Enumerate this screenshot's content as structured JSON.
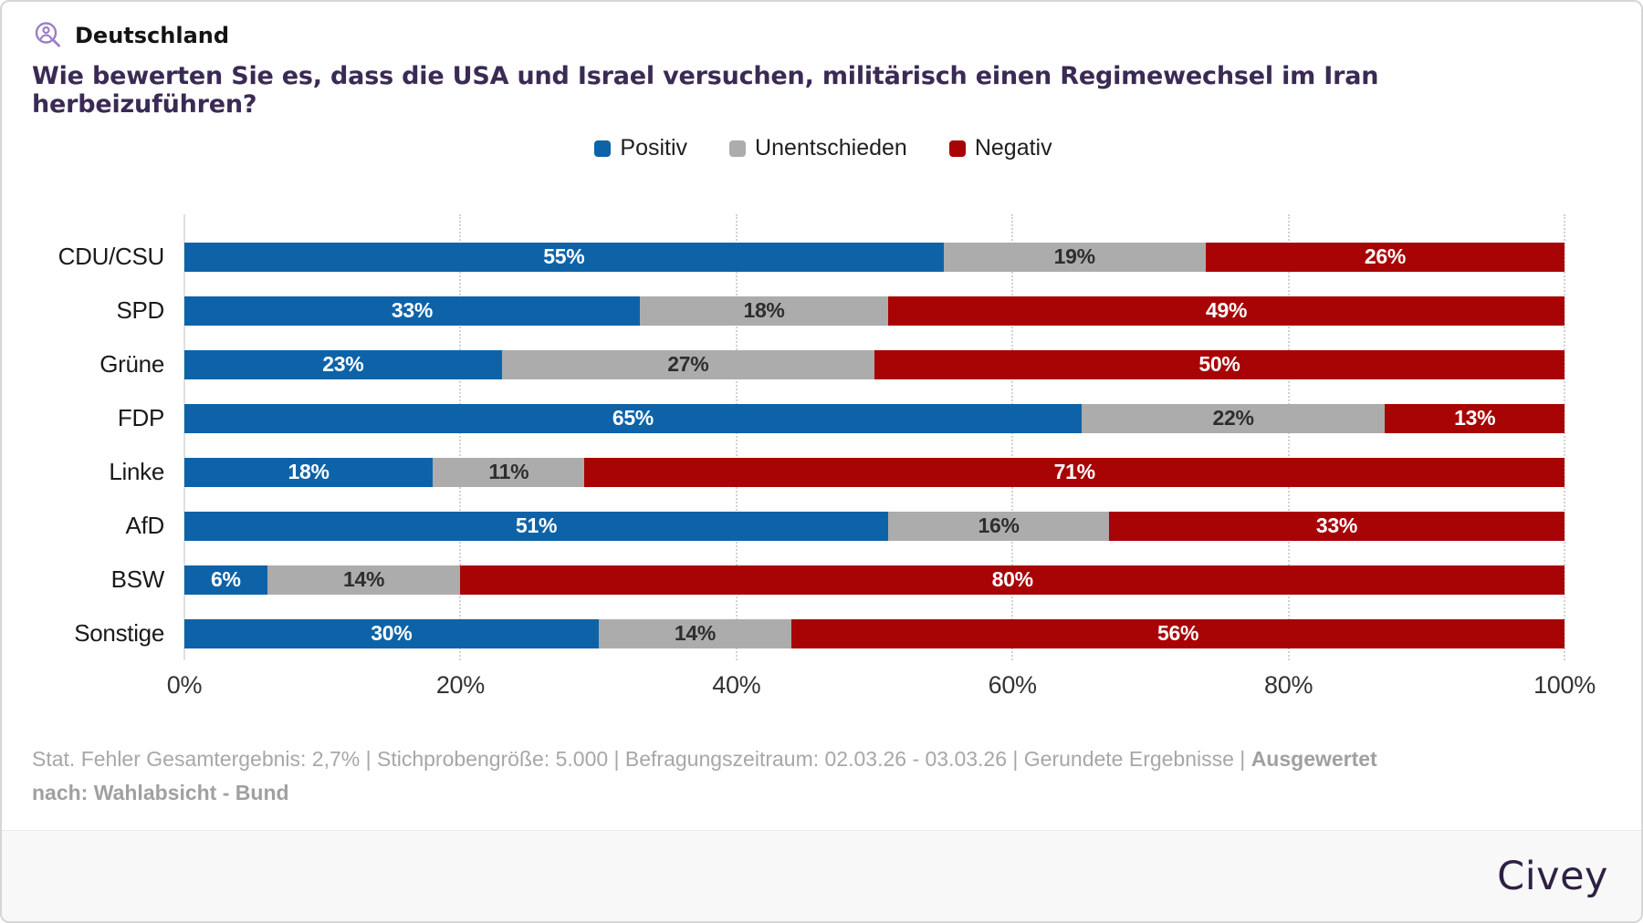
{
  "header": {
    "region": "Deutschland",
    "icon": "person-search-icon"
  },
  "question": "Wie bewerten Sie es, dass die USA und Israel versuchen, militärisch einen Regimewechsel im Iran herbeizuführen?",
  "chart_data": {
    "type": "bar",
    "orientation": "horizontal",
    "stacked": true,
    "unit": "%",
    "categories": [
      "CDU/CSU",
      "SPD",
      "Grüne",
      "FDP",
      "Linke",
      "AfD",
      "BSW",
      "Sonstige"
    ],
    "series": [
      {
        "name": "Positiv",
        "color": "#0e63a8",
        "label_color": "#ffffff",
        "values": [
          55,
          33,
          23,
          65,
          18,
          51,
          6,
          30
        ]
      },
      {
        "name": "Unentschieden",
        "color": "#acacac",
        "label_color": "#2e2e2e",
        "values": [
          19,
          18,
          27,
          22,
          11,
          16,
          14,
          14
        ]
      },
      {
        "name": "Negativ",
        "color": "#a80305",
        "label_color": "#ffffff",
        "values": [
          26,
          49,
          50,
          13,
          71,
          33,
          80,
          56
        ]
      }
    ],
    "x_ticks": [
      "0%",
      "20%",
      "40%",
      "60%",
      "80%",
      "100%"
    ],
    "xlim": [
      0,
      100
    ],
    "grid": "dotted vertical gridlines at 20% steps, solid line at 0%",
    "legend_position": "top-center"
  },
  "footnote": {
    "regular": "Stat. Fehler Gesamtergebnis: 2,7% | Stichprobengröße: 5.000 | Befragungszeitraum: 02.03.26 - 03.03.26 | Gerundete Ergebnisse | ",
    "bold": "Ausgewertet nach: Wahlabsicht - Bund"
  },
  "footer": {
    "brand": "Civey"
  }
}
